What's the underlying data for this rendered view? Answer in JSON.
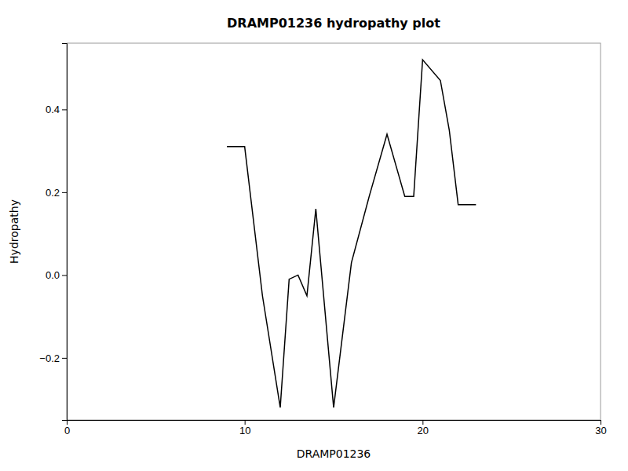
{
  "chart_data": {
    "type": "line",
    "title": "DRAMP01236 hydropathy plot",
    "xlabel": "DRAMP01236",
    "ylabel": "Hydropathy",
    "x": [
      9.0,
      10.0,
      11.0,
      12.0,
      12.5,
      13.0,
      13.5,
      14.0,
      15.0,
      16.0,
      17.0,
      18.0,
      19.0,
      19.5,
      20.0,
      21.0,
      21.5,
      22.0,
      23.0
    ],
    "values": [
      0.31,
      0.31,
      -0.05,
      -0.32,
      -0.01,
      0.0,
      -0.05,
      0.16,
      -0.32,
      0.03,
      0.19,
      0.34,
      0.19,
      0.19,
      0.52,
      0.47,
      0.35,
      0.17,
      0.17
    ],
    "color": "#000000",
    "xlim": [
      0,
      30
    ],
    "ylim": [
      -0.35,
      0.56
    ],
    "xticks": [
      0,
      10,
      20,
      30
    ],
    "yticks": [
      {
        "value": -0.2,
        "label": "−0.2"
      },
      {
        "value": 0.0,
        "label": "0.0"
      },
      0.2,
      0.4
    ],
    "grid": false
  }
}
